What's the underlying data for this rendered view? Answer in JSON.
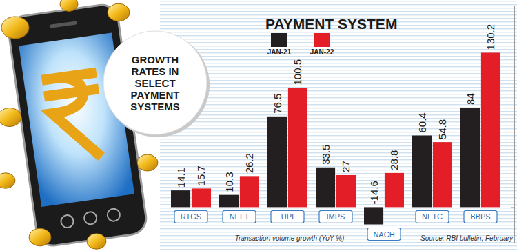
{
  "chart_data": {
    "type": "bar",
    "title": "PAYMENT SYSTEM",
    "subtitle": [
      "GROWTH",
      "RATES IN",
      "SELECT",
      "PAYMENT",
      "SYSTEMS"
    ],
    "categories": [
      "RTGS",
      "NEFT",
      "UPI",
      "IMPS",
      "NACH",
      "NETC",
      "BBPS"
    ],
    "series": [
      {
        "name": "JAN-21",
        "color": "#231f20",
        "values": [
          14.1,
          10.3,
          76.5,
          33.5,
          -14.6,
          60.4,
          84
        ]
      },
      {
        "name": "JAN-22",
        "color": "#e31e26",
        "values": [
          15.7,
          26.2,
          100.5,
          27,
          28.8,
          54.8,
          130.2
        ]
      }
    ],
    "x_label": "Transaction volume growth (YoY %)",
    "source": "Source: RBI bulletin, February",
    "ylim": [
      -30,
      170
    ],
    "yticks": [
      0
    ],
    "grid": false,
    "data_labels": true,
    "tick_labels": "x",
    "legend": "top"
  }
}
